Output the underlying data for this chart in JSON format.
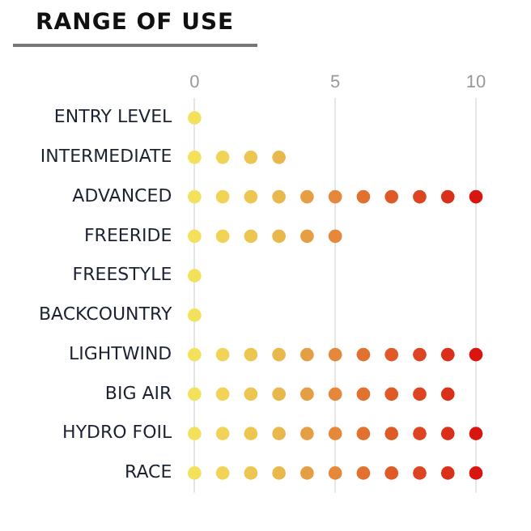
{
  "chart_data": {
    "type": "scatter",
    "orientation": "horizontal",
    "title": "RANGE OF USE",
    "categories": [
      "ENTRY LEVEL",
      "INTERMEDIATE",
      "ADVANCED",
      "FREERIDE",
      "FREESTYLE",
      "BACKCOUNTRY",
      "LIGHTWIND",
      "BIG AIR",
      "HYDRO FOIL",
      "RACE"
    ],
    "series": [
      {
        "color": "#f3e15c",
        "values": [
          0,
          0,
          0,
          0,
          0,
          0,
          0,
          0,
          0,
          0
        ]
      },
      {
        "color": "#f0d357",
        "values": [
          null,
          1,
          1,
          1,
          null,
          null,
          1,
          1,
          1,
          1
        ]
      },
      {
        "color": "#ecc651",
        "values": [
          null,
          2,
          2,
          2,
          null,
          null,
          2,
          2,
          2,
          2
        ]
      },
      {
        "color": "#e9b84c",
        "values": [
          null,
          3,
          3,
          3,
          null,
          null,
          3,
          3,
          3,
          3
        ]
      },
      {
        "color": "#e69e44",
        "values": [
          null,
          null,
          4,
          4,
          null,
          null,
          4,
          4,
          4,
          4
        ]
      },
      {
        "color": "#e5883a",
        "values": [
          null,
          null,
          5,
          5,
          null,
          null,
          5,
          5,
          5,
          5
        ]
      },
      {
        "color": "#e2702f",
        "values": [
          null,
          null,
          6,
          null,
          null,
          null,
          6,
          6,
          6,
          6
        ]
      },
      {
        "color": "#e05a27",
        "values": [
          null,
          null,
          7,
          null,
          null,
          null,
          7,
          7,
          7,
          7
        ]
      },
      {
        "color": "#dd4421",
        "values": [
          null,
          null,
          8,
          null,
          null,
          null,
          8,
          8,
          8,
          8
        ]
      },
      {
        "color": "#da2f18",
        "values": [
          null,
          null,
          9,
          null,
          null,
          null,
          9,
          9,
          9,
          9
        ]
      },
      {
        "color": "#d8150e",
        "values": [
          null,
          null,
          10,
          null,
          null,
          null,
          10,
          null,
          10,
          10
        ]
      }
    ],
    "xlim": [
      0,
      10
    ],
    "xticks": [
      0,
      5,
      10
    ],
    "grid": "x",
    "legend": false,
    "marker": "circle"
  }
}
